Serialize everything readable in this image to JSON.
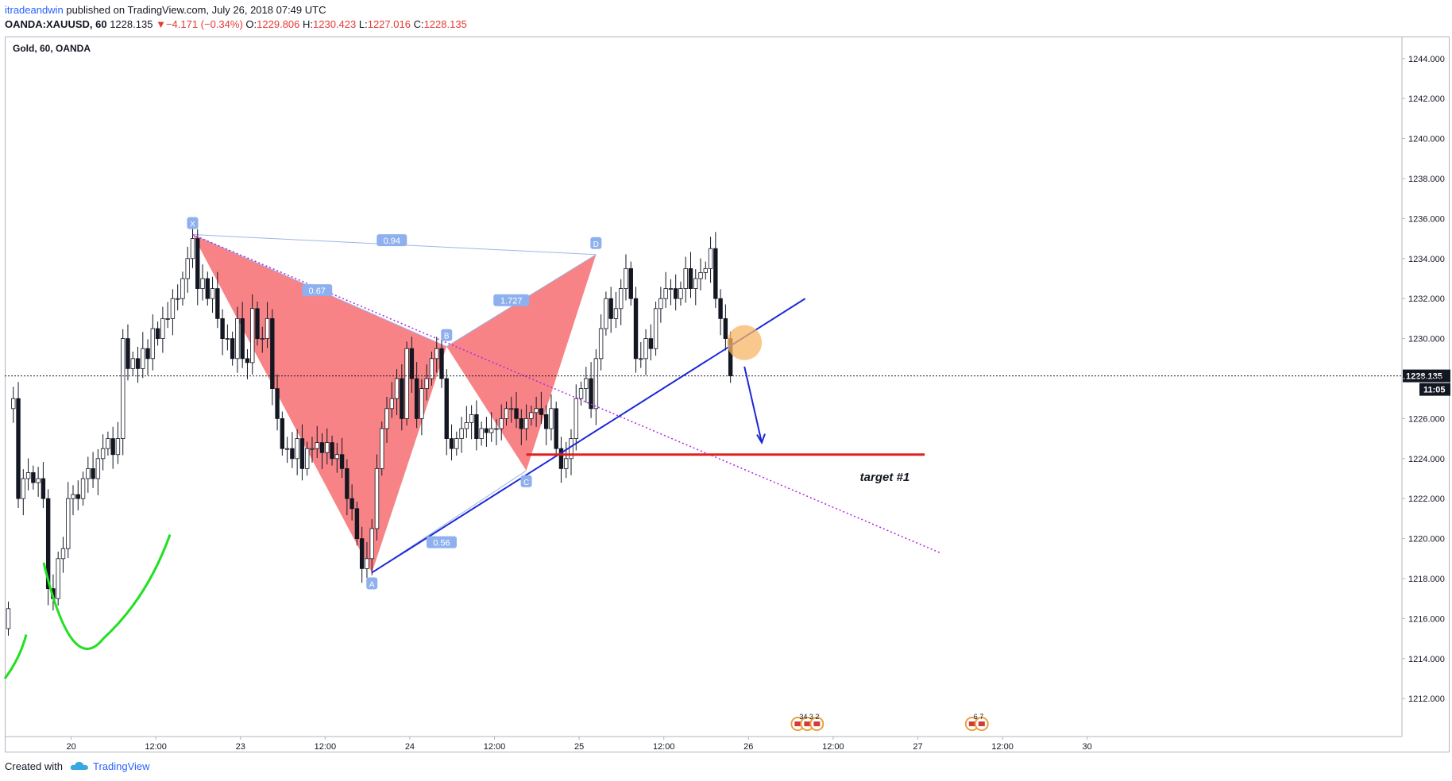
{
  "header": {
    "publisher": "itradeandwin",
    "published_text": "published on TradingView.com, July 26, 2018 07:49 UTC",
    "symbol": "OANDA:XAUUSD, 60",
    "last": "1228.135",
    "change": "−4.171 (−0.34%)",
    "open_label": "O:",
    "open": "1229.806",
    "high_label": "H:",
    "high": "1230.423",
    "low_label": "L:",
    "low": "1227.016",
    "close_label": "C:",
    "close": "1228.135"
  },
  "chart_title": "Gold, 60, OANDA",
  "footer": {
    "created_with": "Created with",
    "brand": "TradingView"
  },
  "chart_data": {
    "type": "candlestick",
    "ylim": [
      1210.5,
      1245.5
    ],
    "yticks": [
      "1244.000",
      "1242.000",
      "1240.000",
      "1238.000",
      "1236.000",
      "1234.000",
      "1232.000",
      "1230.000",
      "1228.000",
      "1226.000",
      "1224.000",
      "1222.000",
      "1220.000",
      "1218.000",
      "1216.000",
      "1214.000",
      "1212.000"
    ],
    "ytick_values": [
      1244,
      1242,
      1240,
      1238,
      1236,
      1234,
      1232,
      1230,
      1228,
      1226,
      1224,
      1222,
      1220,
      1218,
      1216,
      1214,
      1212
    ],
    "xticks": [
      {
        "label": "20",
        "bar": 4
      },
      {
        "label": "12:00",
        "bar": 21
      },
      {
        "label": "23",
        "bar": 38
      },
      {
        "label": "12:00",
        "bar": 55
      },
      {
        "label": "24",
        "bar": 72
      },
      {
        "label": "12:00",
        "bar": 89
      },
      {
        "label": "25",
        "bar": 106
      },
      {
        "label": "12:00",
        "bar": 123
      },
      {
        "label": "26",
        "bar": 140
      },
      {
        "label": "12:00",
        "bar": 157
      },
      {
        "label": "27",
        "bar": 174
      },
      {
        "label": "12:00",
        "bar": 191
      },
      {
        "label": "30",
        "bar": 208
      }
    ],
    "last_price": "1228.135",
    "countdown": "11:05",
    "closes": [
      1216.5,
      1227.0,
      1222.0,
      1223.0,
      1223.3,
      1222.8,
      1223.0,
      1222.0,
      1217.5,
      1217.0,
      1219.0,
      1219.5,
      1222.0,
      1222.2,
      1222.0,
      1223.0,
      1223.5,
      1223.0,
      1224.0,
      1224.5,
      1225.0,
      1224.2,
      1225.0,
      1230.0,
      1228.5,
      1229.0,
      1228.5,
      1229.5,
      1229.0,
      1230.5,
      1230.0,
      1231.0,
      1231.0,
      1232.0,
      1232.0,
      1233.0,
      1234.0,
      1235.0,
      1232.5,
      1233.0,
      1232.0,
      1232.5,
      1231.0,
      1230.0,
      1230.0,
      1229.0,
      1231.0,
      1229.0,
      1228.8,
      1231.5,
      1230.0,
      1230.0,
      1231.0,
      1227.5,
      1226.0,
      1224.5,
      1224.5,
      1224.0,
      1225.0,
      1223.5,
      1224.5,
      1224.5,
      1224.8,
      1224.3,
      1224.8,
      1224.0,
      1224.2,
      1223.5,
      1222.0,
      1221.5,
      1220.0,
      1218.5,
      1219.0,
      1220.5,
      1223.5,
      1225.5,
      1226.5,
      1227.0,
      1228.0,
      1226.0,
      1229.5,
      1228.0,
      1226.0,
      1227.5,
      1228.0,
      1229.0,
      1229.5,
      1228.0,
      1225.0,
      1224.5,
      1225.0,
      1225.5,
      1225.8,
      1226.2,
      1225.0,
      1225.5,
      1225.3,
      1225.5,
      1225.5,
      1226.0,
      1226.5,
      1226.5,
      1226.0,
      1225.5,
      1226.0,
      1226.3,
      1226.5,
      1226.2,
      1225.5,
      1226.5,
      1224.5,
      1223.5,
      1224.0,
      1225.0,
      1227.0,
      1227.5,
      1228.0,
      1226.5,
      1229.0,
      1230.5,
      1232.0,
      1231.0,
      1231.5,
      1232.5,
      1233.5,
      1232.0,
      1229.0,
      1229.0,
      1230.0,
      1229.5,
      1231.5,
      1232.0,
      1232.5,
      1232.5,
      1232.0,
      1232.5,
      1233.5,
      1232.5,
      1233.0,
      1233.3,
      1233.5,
      1234.5,
      1232.0,
      1231.0,
      1230.0,
      1228.135
    ],
    "opens": [
      1215.5,
      1226.5,
      1227.0,
      1222.0,
      1223.0,
      1223.3,
      1222.8,
      1223.0,
      1222.0,
      1217.5,
      1217.0,
      1219.0,
      1219.5,
      1222.0,
      1222.2,
      1222.0,
      1223.0,
      1223.5,
      1223.0,
      1224.0,
      1224.5,
      1225.0,
      1224.2,
      1225.0,
      1230.0,
      1228.5,
      1229.0,
      1228.5,
      1229.5,
      1229.0,
      1230.5,
      1230.0,
      1231.0,
      1231.0,
      1232.0,
      1232.0,
      1233.0,
      1234.0,
      1235.0,
      1232.5,
      1233.0,
      1232.0,
      1232.5,
      1231.0,
      1230.0,
      1230.0,
      1229.0,
      1231.0,
      1229.0,
      1228.8,
      1231.5,
      1230.0,
      1230.0,
      1231.0,
      1227.5,
      1226.0,
      1224.5,
      1224.5,
      1224.0,
      1225.0,
      1223.5,
      1224.5,
      1224.5,
      1224.8,
      1224.3,
      1224.8,
      1224.0,
      1224.2,
      1223.5,
      1222.0,
      1221.5,
      1220.0,
      1218.5,
      1219.0,
      1220.5,
      1223.5,
      1225.5,
      1226.5,
      1227.0,
      1228.0,
      1226.0,
      1229.5,
      1228.0,
      1226.0,
      1227.5,
      1228.0,
      1229.0,
      1229.5,
      1228.0,
      1225.0,
      1224.5,
      1225.0,
      1225.5,
      1225.8,
      1226.2,
      1225.0,
      1225.5,
      1225.3,
      1225.5,
      1225.5,
      1226.0,
      1226.5,
      1226.5,
      1226.0,
      1225.5,
      1226.0,
      1226.3,
      1226.5,
      1226.2,
      1225.5,
      1226.5,
      1224.5,
      1223.5,
      1224.0,
      1225.0,
      1227.0,
      1227.5,
      1228.0,
      1226.5,
      1229.0,
      1230.5,
      1232.0,
      1231.0,
      1231.5,
      1232.5,
      1233.5,
      1232.0,
      1229.0,
      1229.0,
      1230.0,
      1229.5,
      1231.5,
      1232.0,
      1232.5,
      1232.5,
      1232.0,
      1232.5,
      1233.5,
      1232.5,
      1233.0,
      1233.3,
      1233.5,
      1234.5,
      1232.0,
      1231.0,
      1230.0,
      1229.806
    ],
    "harmonic": {
      "points": [
        {
          "label": "X",
          "bar": 37,
          "price": 1235.2
        },
        {
          "label": "A",
          "bar": 73,
          "price": 1218.3
        },
        {
          "label": "B",
          "bar": 88,
          "price": 1229.6
        },
        {
          "label": "C",
          "bar": 104,
          "price": 1223.4
        },
        {
          "label": "D",
          "bar": 118,
          "price": 1234.2
        }
      ],
      "ratios": [
        {
          "label": "0.67",
          "bar": 62,
          "price": 1232.4
        },
        {
          "label": "0.56",
          "bar": 87,
          "price": 1219.8
        },
        {
          "label": "1.727",
          "bar": 101,
          "price": 1231.9
        },
        {
          "label": "0.94",
          "bar": 77,
          "price": 1234.9
        }
      ],
      "fill_color": "#f77c80"
    },
    "trendline_blue": {
      "from": {
        "bar": 73,
        "price": 1218.3
      },
      "to": {
        "bar": 160,
        "price": 1232.0
      },
      "color": "#1a27d6"
    },
    "trendline_dotted": {
      "from": {
        "bar": 37,
        "price": 1235.2
      },
      "to": {
        "bar": 187,
        "price": 1219.3
      },
      "color": "#b026e6"
    },
    "target_line": {
      "from_bar": 104,
      "to_bar": 184,
      "price": 1224.2,
      "color": "#e02020"
    },
    "target_label": "target #1",
    "arrow": {
      "from": {
        "bar": 147,
        "price": 1228.6
      },
      "to": {
        "bar": 150,
        "price": 1224.8
      },
      "color": "#1a27d6"
    },
    "highlight_circle": {
      "bar": 147,
      "price": 1229.8,
      "color": "#f7b565"
    },
    "green_curve_color": "#22e022",
    "events": [
      {
        "bar": 155,
        "icons": 3,
        "text": "34 3 2"
      },
      {
        "bar": 190,
        "icons": 2,
        "text": "6 7"
      }
    ]
  }
}
